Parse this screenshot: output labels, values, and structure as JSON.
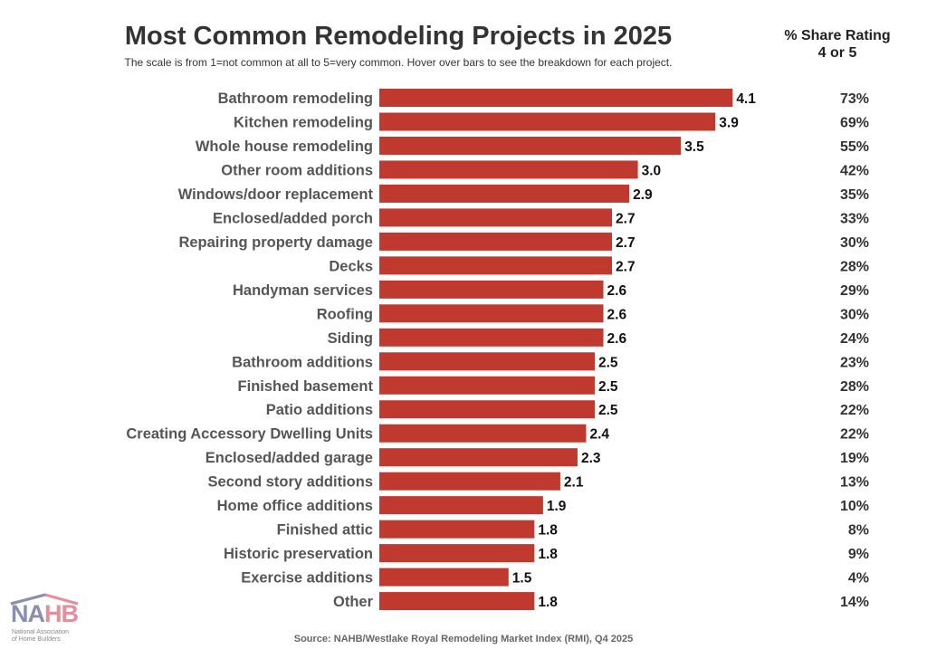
{
  "chart_data": {
    "type": "bar",
    "orientation": "horizontal",
    "title": "Most Common Remodeling Projects in 2025",
    "subtitle": "The scale is from 1=not common at all to 5=very common. Hover over bars to see the breakdown for each project.",
    "secondary_column_header": "% Share Rating 4 or 5",
    "source": "Source: NAHB/Westlake Royal Remodeling Market Index (RMI), Q4 2025",
    "xlim": [
      0,
      5
    ],
    "grid": false,
    "bar_color": "#c0392f",
    "categories": [
      "Bathroom remodeling",
      "Kitchen remodeling",
      "Whole house remodeling",
      "Other room additions",
      "Windows/door replacement",
      "Enclosed/added porch",
      "Repairing property damage",
      "Decks",
      "Handyman services",
      "Roofing",
      "Siding",
      "Bathroom additions",
      "Finished basement",
      "Patio additions",
      "Creating Accessory Dwelling Units",
      "Enclosed/added garage",
      "Second story additions",
      "Home office additions",
      "Finished attic",
      "Historic preservation",
      "Exercise additions",
      "Other"
    ],
    "values": [
      4.1,
      3.9,
      3.5,
      3.0,
      2.9,
      2.7,
      2.7,
      2.7,
      2.6,
      2.6,
      2.6,
      2.5,
      2.5,
      2.5,
      2.4,
      2.3,
      2.1,
      1.9,
      1.8,
      1.8,
      1.5,
      1.8
    ],
    "value_labels": [
      "4.1",
      "3.9",
      "3.5",
      "3.0",
      "2.9",
      "2.7",
      "2.7",
      "2.7",
      "2.6",
      "2.6",
      "2.6",
      "2.5",
      "2.5",
      "2.5",
      "2.4",
      "2.3",
      "2.1",
      "1.9",
      "1.8",
      "1.8",
      "1.5",
      "1.8"
    ],
    "share": [
      "73%",
      "69%",
      "55%",
      "42%",
      "35%",
      "33%",
      "30%",
      "28%",
      "29%",
      "30%",
      "24%",
      "23%",
      "28%",
      "22%",
      "22%",
      "19%",
      "13%",
      "10%",
      "8%",
      "9%",
      "4%",
      "14%"
    ]
  },
  "logo": {
    "text": "NAHB",
    "subtext": "National Association of Home Builders"
  }
}
